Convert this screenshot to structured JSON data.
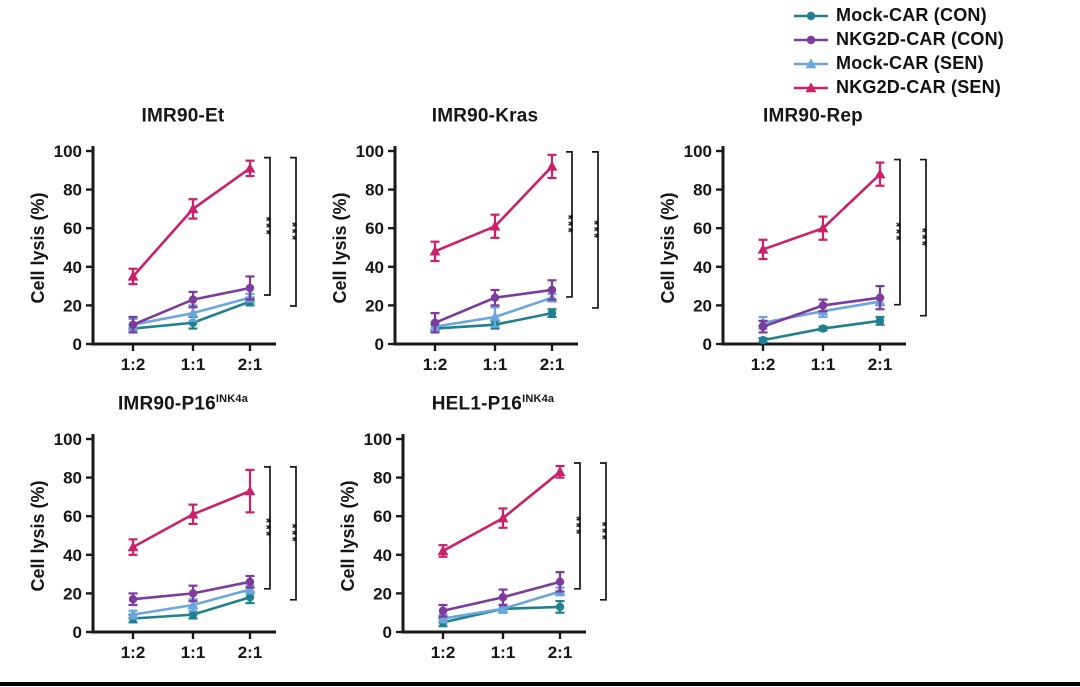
{
  "figure": {
    "background": "#ffffff",
    "axis_color": "#1a1a1a",
    "bottom_border_color": "#000000"
  },
  "legend": {
    "position": "top-right",
    "items": [
      {
        "label": "Mock-CAR (CON)",
        "color": "#20808f",
        "marker": "circle"
      },
      {
        "label": "NKG2D-CAR (CON)",
        "color": "#7e3a9c",
        "marker": "circle"
      },
      {
        "label": "Mock-CAR (SEN)",
        "color": "#6aa5dc",
        "marker": "triangle"
      },
      {
        "label": "NKG2D-CAR (SEN)",
        "color": "#cc2168",
        "marker": "triangle"
      }
    ]
  },
  "chart_data": [
    {
      "type": "line",
      "title": "IMR90-Et",
      "title_sup": "",
      "xlabel": "",
      "ylabel": "Cell lysis (%)",
      "ylim": [
        0,
        100
      ],
      "yticks": [
        0,
        20,
        40,
        60,
        80,
        100
      ],
      "categories": [
        "1:2",
        "1:1",
        "2:1"
      ],
      "series": [
        {
          "name": "Mock-CAR (CON)",
          "values": [
            8,
            11,
            22
          ],
          "errors": [
            2,
            3,
            2
          ]
        },
        {
          "name": "NKG2D-CAR (CON)",
          "values": [
            10,
            23,
            29
          ],
          "errors": [
            4,
            4,
            6
          ]
        },
        {
          "name": "Mock-CAR (SEN)",
          "values": [
            10,
            16,
            24
          ],
          "errors": [
            3,
            4,
            2
          ]
        },
        {
          "name": "NKG2D-CAR (SEN)",
          "values": [
            35,
            70,
            91
          ],
          "errors": [
            4,
            5,
            4
          ]
        }
      ],
      "significance": [
        {
          "label": "***"
        },
        {
          "label": "***"
        }
      ]
    },
    {
      "type": "line",
      "title": "IMR90-Kras",
      "title_sup": "",
      "xlabel": "",
      "ylabel": "Cell lysis (%)",
      "ylim": [
        0,
        100
      ],
      "yticks": [
        0,
        20,
        40,
        60,
        80,
        100
      ],
      "categories": [
        "1:2",
        "1:1",
        "2:1"
      ],
      "series": [
        {
          "name": "Mock-CAR (CON)",
          "values": [
            8,
            10,
            16
          ],
          "errors": [
            2,
            2,
            2
          ]
        },
        {
          "name": "NKG2D-CAR (CON)",
          "values": [
            11,
            24,
            28
          ],
          "errors": [
            5,
            4,
            5
          ]
        },
        {
          "name": "Mock-CAR (SEN)",
          "values": [
            9,
            14,
            24
          ],
          "errors": [
            2,
            5,
            2
          ]
        },
        {
          "name": "NKG2D-CAR (SEN)",
          "values": [
            48,
            61,
            92
          ],
          "errors": [
            5,
            6,
            6
          ]
        }
      ],
      "significance": [
        {
          "label": "***"
        },
        {
          "label": "***"
        }
      ]
    },
    {
      "type": "line",
      "title": "IMR90-Rep",
      "title_sup": "",
      "xlabel": "",
      "ylabel": "Cell lysis (%)",
      "ylim": [
        0,
        100
      ],
      "yticks": [
        0,
        20,
        40,
        60,
        80,
        100
      ],
      "categories": [
        "1:2",
        "1:1",
        "2:1"
      ],
      "series": [
        {
          "name": "Mock-CAR (CON)",
          "values": [
            2,
            8,
            12
          ],
          "errors": [
            1,
            1,
            2
          ]
        },
        {
          "name": "NKG2D-CAR (CON)",
          "values": [
            9,
            20,
            24
          ],
          "errors": [
            3,
            3,
            6
          ]
        },
        {
          "name": "Mock-CAR (SEN)",
          "values": [
            11,
            17,
            22
          ],
          "errors": [
            3,
            3,
            2
          ]
        },
        {
          "name": "NKG2D-CAR (SEN)",
          "values": [
            49,
            60,
            88
          ],
          "errors": [
            5,
            6,
            6
          ]
        }
      ],
      "significance": [
        {
          "label": "***"
        },
        {
          "label": "***"
        }
      ]
    },
    {
      "type": "line",
      "title": "IMR90-P16",
      "title_sup": "INK4a",
      "xlabel": "",
      "ylabel": "Cell lysis (%)",
      "ylim": [
        0,
        100
      ],
      "yticks": [
        0,
        20,
        40,
        60,
        80,
        100
      ],
      "categories": [
        "1:2",
        "1:1",
        "2:1"
      ],
      "series": [
        {
          "name": "Mock-CAR (CON)",
          "values": [
            7,
            9,
            18
          ],
          "errors": [
            2,
            2,
            3
          ]
        },
        {
          "name": "NKG2D-CAR (CON)",
          "values": [
            17,
            20,
            26
          ],
          "errors": [
            3,
            4,
            3
          ]
        },
        {
          "name": "Mock-CAR (SEN)",
          "values": [
            9,
            14,
            22
          ],
          "errors": [
            2,
            3,
            2
          ]
        },
        {
          "name": "NKG2D-CAR (SEN)",
          "values": [
            44,
            61,
            73
          ],
          "errors": [
            4,
            5,
            11
          ]
        }
      ],
      "significance": [
        {
          "label": "***"
        },
        {
          "label": "***"
        }
      ]
    },
    {
      "type": "line",
      "title": "HEL1-P16",
      "title_sup": "INK4a",
      "xlabel": "",
      "ylabel": "Cell lysis (%)",
      "ylim": [
        0,
        100
      ],
      "yticks": [
        0,
        20,
        40,
        60,
        80,
        100
      ],
      "categories": [
        "1:2",
        "1:1",
        "2:1"
      ],
      "series": [
        {
          "name": "Mock-CAR (CON)",
          "values": [
            5,
            12,
            13
          ],
          "errors": [
            2,
            2,
            3
          ]
        },
        {
          "name": "NKG2D-CAR (CON)",
          "values": [
            11,
            18,
            26
          ],
          "errors": [
            3,
            4,
            5
          ]
        },
        {
          "name": "Mock-CAR (SEN)",
          "values": [
            7,
            12,
            21
          ],
          "errors": [
            2,
            2,
            2
          ]
        },
        {
          "name": "NKG2D-CAR (SEN)",
          "values": [
            42,
            59,
            83
          ],
          "errors": [
            3,
            5,
            3
          ]
        }
      ],
      "significance": [
        {
          "label": "***"
        },
        {
          "label": "***"
        }
      ]
    }
  ]
}
